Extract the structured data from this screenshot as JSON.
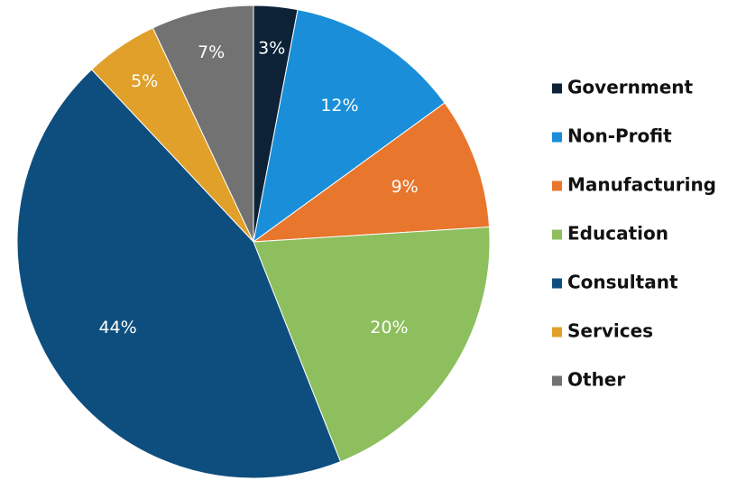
{
  "chart_data": {
    "type": "pie",
    "title": "",
    "legend_position": "right",
    "start_angle_deg": 0,
    "direction": "clockwise",
    "slices": [
      {
        "name": "Government",
        "value": 3,
        "label": "3%",
        "color": "#0d2236"
      },
      {
        "name": "Non-Profit",
        "value": 12,
        "label": "12%",
        "color": "#1a8ed8"
      },
      {
        "name": "Manufacturing",
        "value": 9,
        "label": "9%",
        "color": "#e8762d"
      },
      {
        "name": "Education",
        "value": 20,
        "label": "20%",
        "color": "#8dbf5e"
      },
      {
        "name": "Consultant",
        "value": 44,
        "label": "44%",
        "color": "#0e4e7e"
      },
      {
        "name": "Services",
        "value": 5,
        "label": "5%",
        "color": "#e0a02a"
      },
      {
        "name": "Other",
        "value": 7,
        "label": "7%",
        "color": "#727272"
      }
    ]
  }
}
